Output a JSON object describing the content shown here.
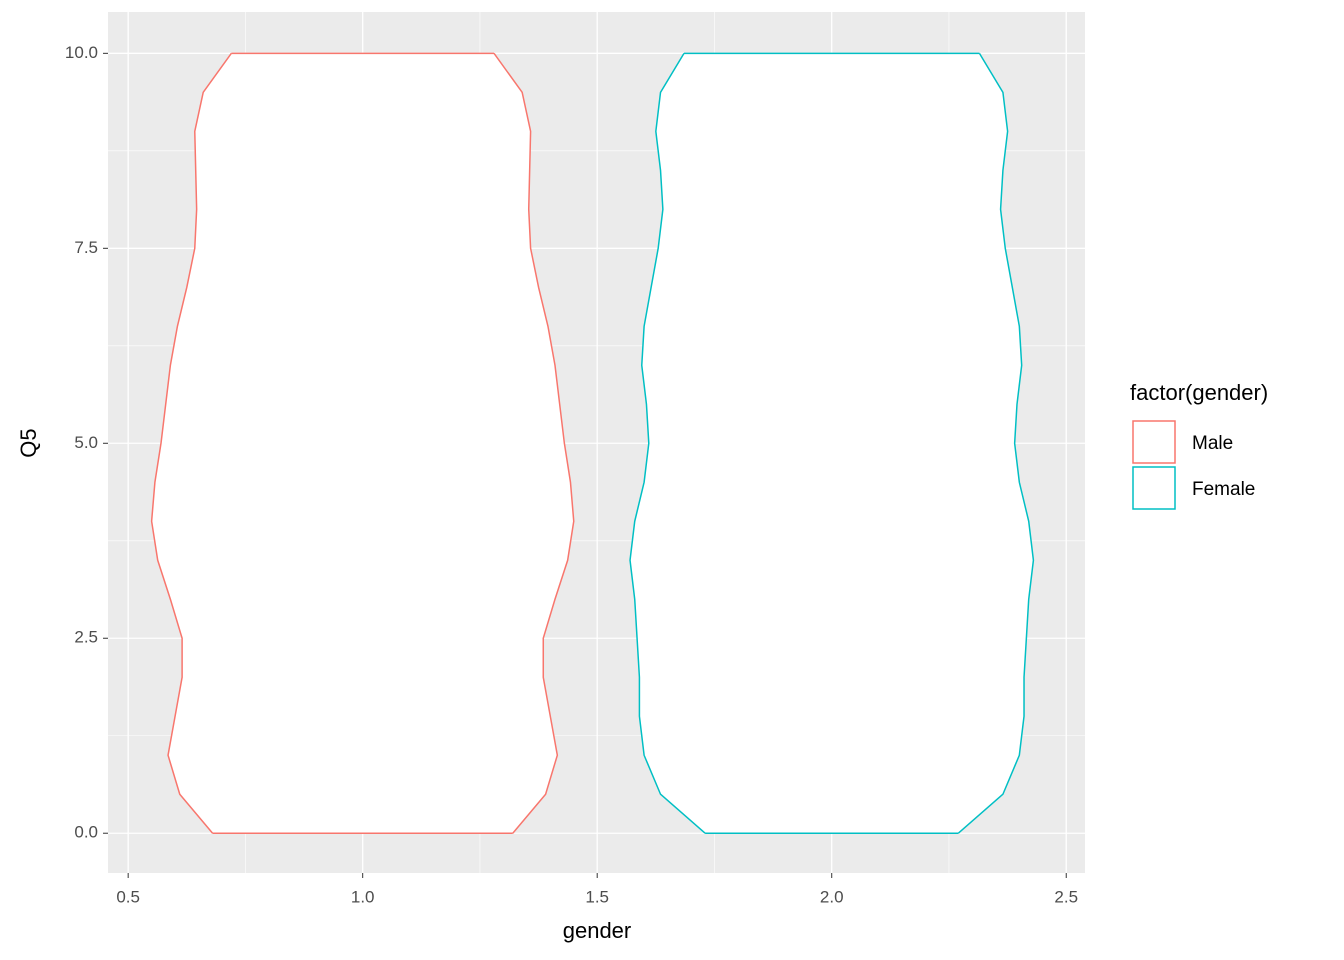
{
  "chart_data": {
    "type": "violin",
    "x_label": "gender",
    "y_label": "Q5",
    "legend_title": "factor(gender)",
    "xlim": [
      0.457,
      2.54
    ],
    "ylim": [
      -0.51,
      10.53
    ],
    "xticks": [
      0.5,
      {
        "value": 1,
        "label": "1.0"
      },
      1.5,
      {
        "value": 2,
        "label": "2.0"
      },
      2.5
    ],
    "yticks": [
      {
        "value": 0,
        "label": "0.0"
      },
      2.5,
      {
        "value": 5,
        "label": "5.0"
      },
      7.5,
      {
        "value": 10,
        "label": "10.0"
      }
    ],
    "x_minor_ticks": [
      0.75,
      1.25,
      1.75,
      2.25
    ],
    "y_minor_ticks": [
      1.25,
      3.75,
      6.25,
      8.75
    ],
    "grid": true,
    "series": [
      {
        "name": "Male",
        "color": "#f8766d",
        "x": 1,
        "y": [
          0,
          0.5,
          1,
          1.5,
          2,
          2.5,
          3,
          3.5,
          4,
          4.5,
          5,
          5.5,
          6,
          6.5,
          7,
          7.5,
          8,
          8.5,
          9,
          9.5,
          10
        ],
        "half_width": [
          0.32,
          0.39,
          0.415,
          0.4,
          0.385,
          0.385,
          0.41,
          0.437,
          0.45,
          0.443,
          0.43,
          0.42,
          0.41,
          0.395,
          0.375,
          0.358,
          0.354,
          0.356,
          0.358,
          0.34,
          0.28
        ]
      },
      {
        "name": "Female",
        "color": "#00bfc4",
        "x": 2,
        "y": [
          0,
          0.5,
          1,
          1.5,
          2,
          2.5,
          3,
          3.5,
          4,
          4.5,
          5,
          5.5,
          6,
          6.5,
          7,
          7.5,
          8,
          8.5,
          9,
          9.5,
          10
        ],
        "half_width": [
          0.27,
          0.365,
          0.4,
          0.41,
          0.41,
          0.415,
          0.42,
          0.43,
          0.42,
          0.4,
          0.39,
          0.395,
          0.405,
          0.4,
          0.385,
          0.37,
          0.36,
          0.365,
          0.375,
          0.365,
          0.315
        ]
      }
    ]
  }
}
